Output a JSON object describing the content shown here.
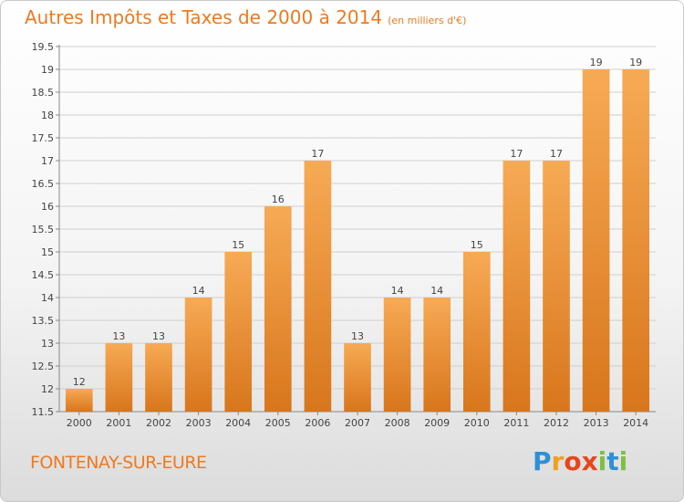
{
  "title": "Autres Impôts et Taxes de 2000 à 2014",
  "unit": "(en milliers d'€)",
  "commune": "FONTENAY-SUR-EURE",
  "logo": {
    "letters": [
      "P",
      "r",
      "o",
      "x",
      "i",
      "t",
      "i"
    ],
    "colors": [
      "#2f8fd6",
      "#f0a020",
      "#e8451e",
      "#e8451e",
      "#7cc040",
      "#2f8fd6",
      "#7cc040"
    ]
  },
  "colors": {
    "bar_top": "#f7aa55",
    "bar_bottom": "#d8761c",
    "title": "#ee7a1f",
    "grid": "#cfcfcf"
  },
  "chart_data": {
    "type": "bar",
    "categories": [
      "2000",
      "2001",
      "2002",
      "2003",
      "2004",
      "2005",
      "2006",
      "2007",
      "2008",
      "2009",
      "2010",
      "2011",
      "2012",
      "2013",
      "2014"
    ],
    "values": [
      12,
      13,
      13,
      14,
      15,
      16,
      17,
      13,
      14,
      14,
      15,
      17,
      17,
      19,
      19
    ],
    "value_labels": [
      "12",
      "13",
      "13",
      "14",
      "15",
      "16",
      "17",
      "13",
      "14",
      "14",
      "15",
      "17",
      "17",
      "19",
      "19"
    ],
    "yticks": [
      "11.5",
      "12",
      "12.5",
      "13",
      "13.5",
      "14",
      "14.5",
      "15",
      "15.5",
      "16",
      "16.5",
      "17",
      "17.5",
      "18",
      "18.5",
      "19",
      "19.5"
    ],
    "ylim": [
      11.5,
      19.5
    ],
    "grid": true
  }
}
